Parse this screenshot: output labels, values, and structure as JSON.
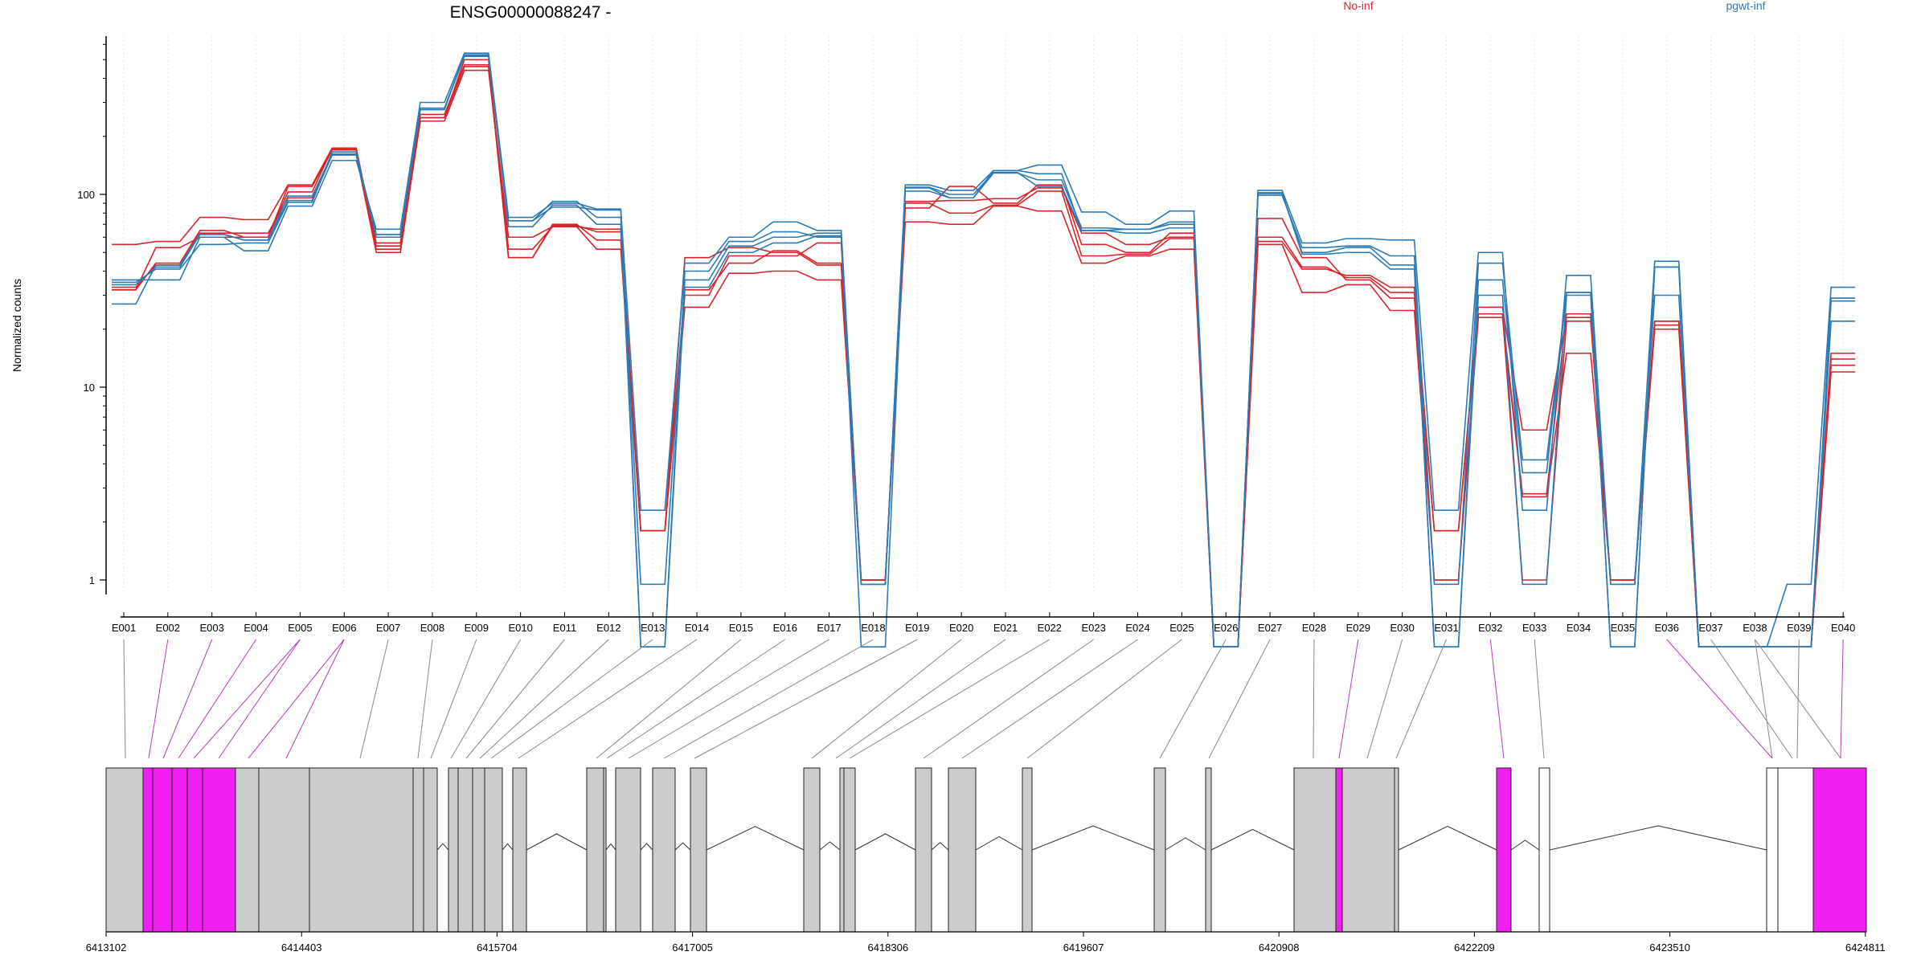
{
  "chart_data": {
    "type": "line",
    "title": "ENSG00000088247 -",
    "ylabel": "Normalized counts",
    "xlabel": "",
    "y_scale": "log",
    "ylim": [
      0.4,
      900
    ],
    "y_ticks": [
      1,
      10,
      100
    ],
    "y_tick_labels": [
      "1",
      "10",
      "100"
    ],
    "grid": "vertical-dotted",
    "legend_position": "top-right",
    "categories": [
      "E001",
      "E002",
      "E003",
      "E004",
      "E005",
      "E006",
      "E007",
      "E008",
      "E009",
      "E010",
      "E011",
      "E012",
      "E013",
      "E014",
      "E015",
      "E016",
      "E017",
      "E018",
      "E019",
      "E020",
      "E021",
      "E022",
      "E023",
      "E024",
      "E025",
      "E026",
      "E027",
      "E028",
      "E029",
      "E030",
      "E031",
      "E032",
      "E033",
      "E034",
      "E035",
      "E036",
      "E037",
      "E038",
      "E039",
      "E040"
    ],
    "series": [
      {
        "name": "No-inf",
        "group": "No-inf",
        "color": "#d7262b",
        "values": [
          55,
          57,
          76,
          74,
          112,
          174,
          54,
          260,
          470,
          47,
          70,
          58,
          1.8,
          47,
          53,
          50,
          43,
          1.0,
          85,
          110,
          90,
          112,
          55,
          50,
          63,
          0.45,
          60,
          42,
          37,
          31,
          1.0,
          24,
          1.0,
          22,
          1.0,
          22,
          0.45,
          0.45,
          0.45,
          14
        ]
      },
      {
        "name": "",
        "group": "No-inf",
        "color": "#d7262b",
        "values": [
          33,
          43,
          63,
          63,
          96,
          160,
          50,
          240,
          440,
          60,
          68,
          66,
          1.8,
          30,
          48,
          48,
          56,
          1.0,
          92,
          93,
          95,
          108,
          63,
          55,
          60,
          0.45,
          75,
          47,
          36,
          29,
          1.8,
          24,
          2.8,
          24,
          1.0,
          21,
          0.45,
          0.45,
          0.45,
          12
        ]
      },
      {
        "name": "",
        "group": "No-inf",
        "color": "#d7262b",
        "values": [
          32,
          53,
          60,
          60,
          110,
          170,
          56,
          250,
          500,
          47,
          69,
          64,
          1.8,
          26,
          39,
          40,
          36,
          1.0,
          72,
          70,
          87,
          82,
          44,
          48,
          52,
          0.45,
          55,
          31,
          34,
          25,
          1.0,
          23,
          2.7,
          15,
          1.0,
          20,
          0.45,
          0.45,
          0.45,
          13
        ]
      },
      {
        "name": "",
        "group": "No-inf",
        "color": "#d7262b",
        "values": [
          32,
          44,
          65,
          60,
          103,
          172,
          52,
          250,
          460,
          52,
          68,
          52,
          1.8,
          32,
          44,
          51,
          44,
          1.0,
          90,
          80,
          88,
          104,
          48,
          49,
          59,
          0.45,
          57,
          41,
          38,
          33,
          1.8,
          26,
          6.0,
          23,
          1.0,
          22,
          0.45,
          0.45,
          0.45,
          15
        ]
      },
      {
        "name": "pgwt-inf",
        "group": "pgwt-inf",
        "color": "#2c7bb6",
        "values": [
          36,
          36,
          60,
          51,
          87,
          150,
          66,
          300,
          540,
          76,
          90,
          84,
          2.3,
          44,
          60,
          72,
          65,
          0.95,
          112,
          105,
          133,
          142,
          81,
          70,
          82,
          0.45,
          105,
          56,
          59,
          58,
          2.3,
          50,
          2.3,
          38,
          0.95,
          45,
          0.45,
          0.45,
          0.95,
          33
        ]
      },
      {
        "name": "",
        "group": "pgwt-inf",
        "color": "#2c7bb6",
        "values": [
          27,
          43,
          62,
          58,
          93,
          160,
          62,
          280,
          520,
          73,
          92,
          76,
          0.95,
          36,
          54,
          60,
          63,
          0.95,
          109,
          100,
          130,
          110,
          65,
          66,
          72,
          0.45,
          99,
          53,
          54,
          48,
          0.95,
          44,
          4.2,
          31,
          0.95,
          30,
          0.45,
          0.45,
          0.45,
          29
        ]
      },
      {
        "name": "",
        "group": "pgwt-inf",
        "color": "#2c7bb6",
        "values": [
          34,
          42,
          62,
          58,
          98,
          162,
          62,
          280,
          525,
          73,
          86,
          83,
          0.45,
          40,
          57,
          64,
          60,
          0.95,
          108,
          96,
          133,
          128,
          65,
          63,
          67,
          0.45,
          101,
          50,
          53,
          43,
          0.45,
          36,
          3.6,
          31,
          0.45,
          42,
          0.45,
          0.45,
          0.45,
          28
        ]
      },
      {
        "name": "",
        "group": "pgwt-inf",
        "color": "#2c7bb6",
        "values": [
          35,
          41,
          55,
          56,
          91,
          166,
          60,
          275,
          530,
          68,
          88,
          70,
          0.45,
          33,
          50,
          56,
          61,
          0.45,
          104,
          96,
          129,
          119,
          67,
          66,
          70,
          0.45,
          102,
          49,
          50,
          41,
          0.45,
          30,
          0.95,
          30,
          0.45,
          42,
          0.45,
          0.45,
          0.45,
          22
        ]
      }
    ],
    "gene_model": {
      "coord_ticks": [
        "6413102",
        "6414403",
        "6415704",
        "6417005",
        "6418306",
        "6419607",
        "6420908",
        "6422209",
        "6423510",
        "6424811"
      ],
      "highlighted_exons": [
        "E002",
        "E003",
        "E004",
        "E005",
        "E006",
        "E029",
        "E032",
        "E036",
        "E040"
      ],
      "highlight_color": "#f020f0",
      "exon_color": "#cccccc"
    }
  }
}
